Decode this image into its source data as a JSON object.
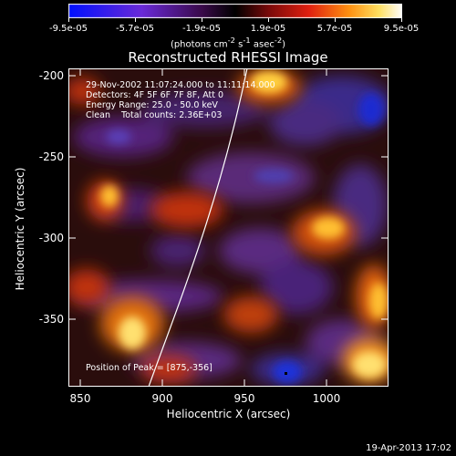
{
  "colorbar": {
    "tick_labels": [
      "-9.5e-05",
      "-5.7e-05",
      "-1.9e-05",
      "1.9e-05",
      "5.7e-05",
      "9.5e-05"
    ],
    "units_text": "(photons cm",
    "units_exp1": "-2",
    "units_mid": " s",
    "units_exp2": "-1",
    "units_end": " asec",
    "units_exp3": "-2",
    "units_close": ")"
  },
  "title": "Reconstructed RHESSI Image",
  "annotations": {
    "time": "29-Nov-2002 11:07:24.000 to 11:11:14.000",
    "detectors": "Detectors: 4F 5F 6F 7F 8F, Att 0",
    "energy": "Energy Range: 25.0 - 50.0 keV",
    "clean": "Clean    Total counts: 2.36E+03",
    "peak": "Position of Peak = [875,-356]"
  },
  "axes": {
    "x_label": "Heliocentric X (arcsec)",
    "y_label": "Heliocentric Y (arcsec)",
    "x_ticks": [
      "850",
      "900",
      "950",
      "1000"
    ],
    "y_ticks": [
      "-200",
      "-250",
      "-300",
      "-350"
    ]
  },
  "footer": "19-Apr-2013 17:02",
  "colors": {
    "background": "#000000",
    "text": "#ffffff",
    "limb": "#ffffff"
  }
}
